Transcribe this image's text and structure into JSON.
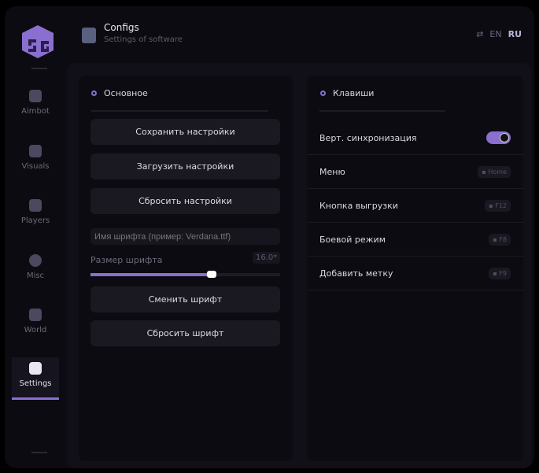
{
  "header": {
    "title": "Configs",
    "subtitle": "Settings of software",
    "lang_en": "EN",
    "lang_ru": "RU"
  },
  "sidebar": {
    "items": [
      {
        "label": "Aimbot",
        "icon": "skull-icon"
      },
      {
        "label": "Visuals",
        "icon": "camera-icon"
      },
      {
        "label": "Players",
        "icon": "users-icon"
      },
      {
        "label": "Misc",
        "icon": "chat-icon"
      },
      {
        "label": "World",
        "icon": "briefcase-icon"
      },
      {
        "label": "Settings",
        "icon": "list-icon",
        "active": true
      }
    ]
  },
  "main": {
    "title": "Основное",
    "buttons": [
      "Сохранить настройки",
      "Загрузить настройки",
      "Сбросить настройки"
    ],
    "font_placeholder": "Имя шрифта (пример: Verdana.ttf)",
    "font_size_label": "Размер шрифта",
    "font_size_value": "16.0*",
    "font_size_fraction": 0.64,
    "change_font": "Сменить шрифт",
    "reset_font": "Сбросить шрифт"
  },
  "keys": {
    "title": "Клавиши",
    "vsync": "Верт. синхронизация",
    "vsync_on": true,
    "rows": [
      {
        "label": "Меню",
        "key": "Home"
      },
      {
        "label": "Кнопка выгрузки",
        "key": "F12"
      },
      {
        "label": "Боевой режим",
        "key": "F8"
      },
      {
        "label": "Добавить метку",
        "key": "F9"
      }
    ]
  },
  "colors": {
    "accent": "#8a6fd0",
    "bg": "#0c0b11"
  }
}
